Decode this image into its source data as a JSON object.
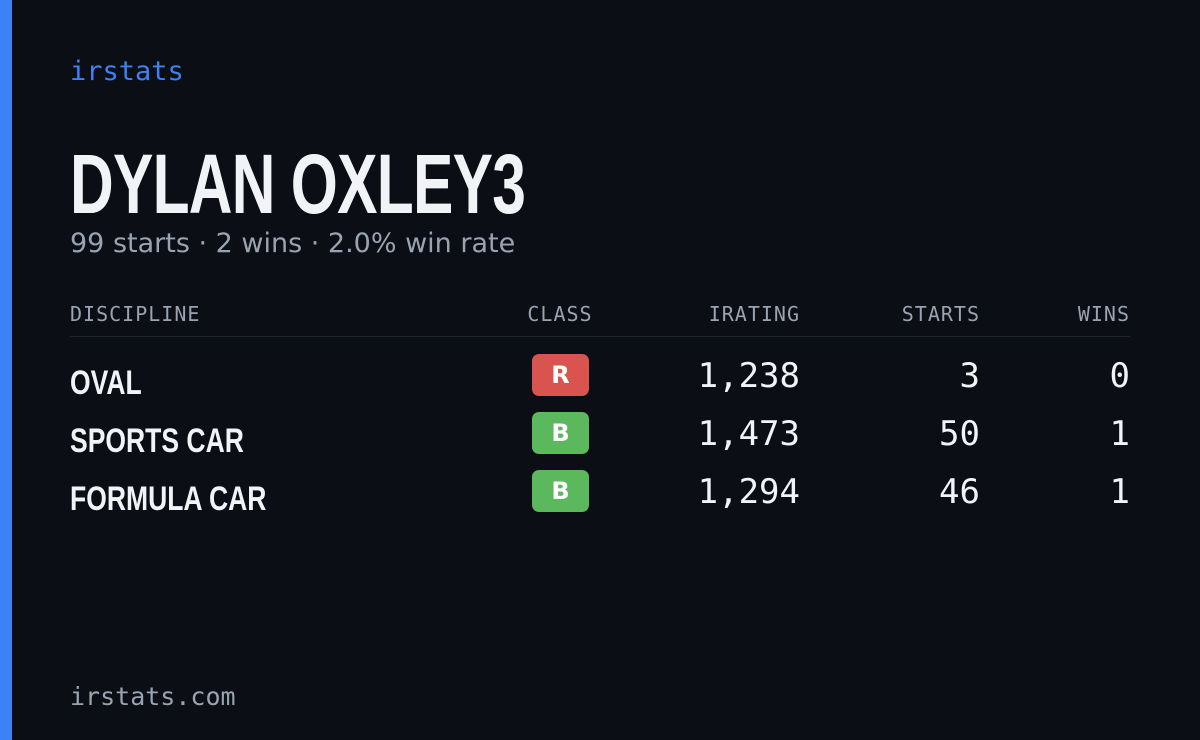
{
  "brand": "irstats",
  "driver": {
    "name": "DYLAN OXLEY3",
    "summary": "99 starts · 2 wins · 2.0% win rate"
  },
  "table": {
    "headers": [
      "DISCIPLINE",
      "CLASS",
      "IRATING",
      "STARTS",
      "WINS"
    ],
    "rows": [
      {
        "discipline": "OVAL",
        "class": "R",
        "class_color": "#d9534f",
        "irating": "1,238",
        "starts": "3",
        "wins": "0"
      },
      {
        "discipline": "SPORTS CAR",
        "class": "B",
        "class_color": "#5cb85c",
        "irating": "1,473",
        "starts": "50",
        "wins": "1"
      },
      {
        "discipline": "FORMULA CAR",
        "class": "B",
        "class_color": "#5cb85c",
        "irating": "1,294",
        "starts": "46",
        "wins": "1"
      }
    ]
  },
  "footer": "irstats.com"
}
